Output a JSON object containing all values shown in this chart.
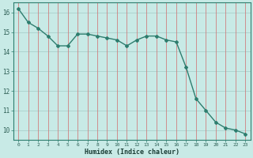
{
  "xlabel": "Humidex (Indice chaleur)",
  "x": [
    0,
    1,
    2,
    3,
    4,
    5,
    6,
    7,
    8,
    9,
    10,
    11,
    12,
    13,
    14,
    15,
    16,
    17,
    18,
    19,
    20,
    21,
    22,
    23
  ],
  "y": [
    16.2,
    15.5,
    15.2,
    14.8,
    14.3,
    14.3,
    14.9,
    14.9,
    14.8,
    14.7,
    14.6,
    14.3,
    14.6,
    14.8,
    14.8,
    14.6,
    14.5,
    13.2,
    11.6,
    11.0,
    10.4,
    10.1,
    10.0,
    9.8
  ],
  "ylim": [
    9.5,
    16.5
  ],
  "yticks": [
    10,
    11,
    12,
    13,
    14,
    15,
    16
  ],
  "xticks": [
    0,
    1,
    2,
    3,
    4,
    5,
    6,
    7,
    8,
    9,
    10,
    11,
    12,
    13,
    14,
    15,
    16,
    17,
    18,
    19,
    20,
    21,
    22,
    23
  ],
  "line_color": "#2e7d6e",
  "marker_color": "#2e7d6e",
  "bg_color": "#c8eae6",
  "grid_color_h": "#aacfcb",
  "grid_color_v": "#d08080",
  "axes_color": "#2e7d6e",
  "tick_label_color": "#2e5f55",
  "xlabel_color": "#1a3d35"
}
